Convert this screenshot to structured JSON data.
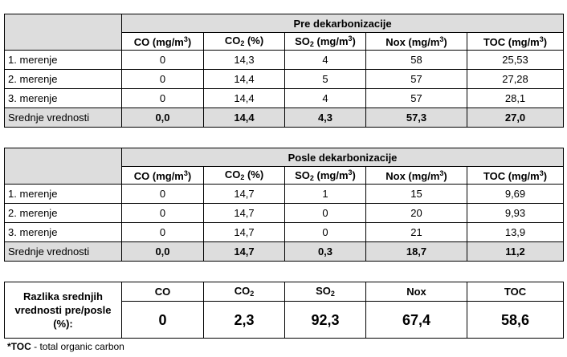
{
  "tables": [
    {
      "title": "Pre dekarbonizacije",
      "rows": [
        {
          "label": "1. merenje",
          "values": [
            "0",
            "14,3",
            "4",
            "58",
            "25,53"
          ]
        },
        {
          "label": "2. merenje",
          "values": [
            "0",
            "14,4",
            "5",
            "57",
            "27,28"
          ]
        },
        {
          "label": "3. merenje",
          "values": [
            "0",
            "14,4",
            "4",
            "57",
            "28,1"
          ]
        }
      ],
      "avg": {
        "label": "Srednje vrednosti",
        "values": [
          "0,0",
          "14,4",
          "4,3",
          "57,3",
          "27,0"
        ]
      }
    },
    {
      "title": "Posle dekarbonizacije",
      "rows": [
        {
          "label": "1. merenje",
          "values": [
            "0",
            "14,7",
            "1",
            "15",
            "9,69"
          ]
        },
        {
          "label": "2. merenje",
          "values": [
            "0",
            "14,7",
            "0",
            "20",
            "9,93"
          ]
        },
        {
          "label": "3. merenje",
          "values": [
            "0",
            "14,7",
            "0",
            "21",
            "13,9"
          ]
        }
      ],
      "avg": {
        "label": "Srednje vrednosti",
        "values": [
          "0,0",
          "14,7",
          "0,3",
          "18,7",
          "11,2"
        ]
      }
    }
  ],
  "columns": {
    "co": {
      "main": "CO (mg/m",
      "sup": "3",
      "tail": ")"
    },
    "co2": {
      "main": "CO",
      "sub": "2",
      "tail": " (%)"
    },
    "so2": {
      "main": "SO",
      "sub": "2",
      "mid": " (mg/m",
      "sup": "3",
      "tail": ")"
    },
    "nox": {
      "main": "Nox (mg/m",
      "sup": "3",
      "tail": ")"
    },
    "toc": {
      "main": "TOC (mg/m",
      "sup": "3",
      "tail": ")"
    }
  },
  "diff": {
    "label": "Razlika srednjih vrednosti pre/posle (%):",
    "headers": {
      "co": "CO",
      "co2": "CO",
      "co2_sub": "2",
      "so2": "SO",
      "so2_sub": "2",
      "nox": "Nox",
      "toc": "TOC"
    },
    "values": [
      "0",
      "2,3",
      "92,3",
      "67,4",
      "58,6"
    ]
  },
  "note": {
    "bold": "*TOC",
    "text": " - total organic carbon"
  }
}
